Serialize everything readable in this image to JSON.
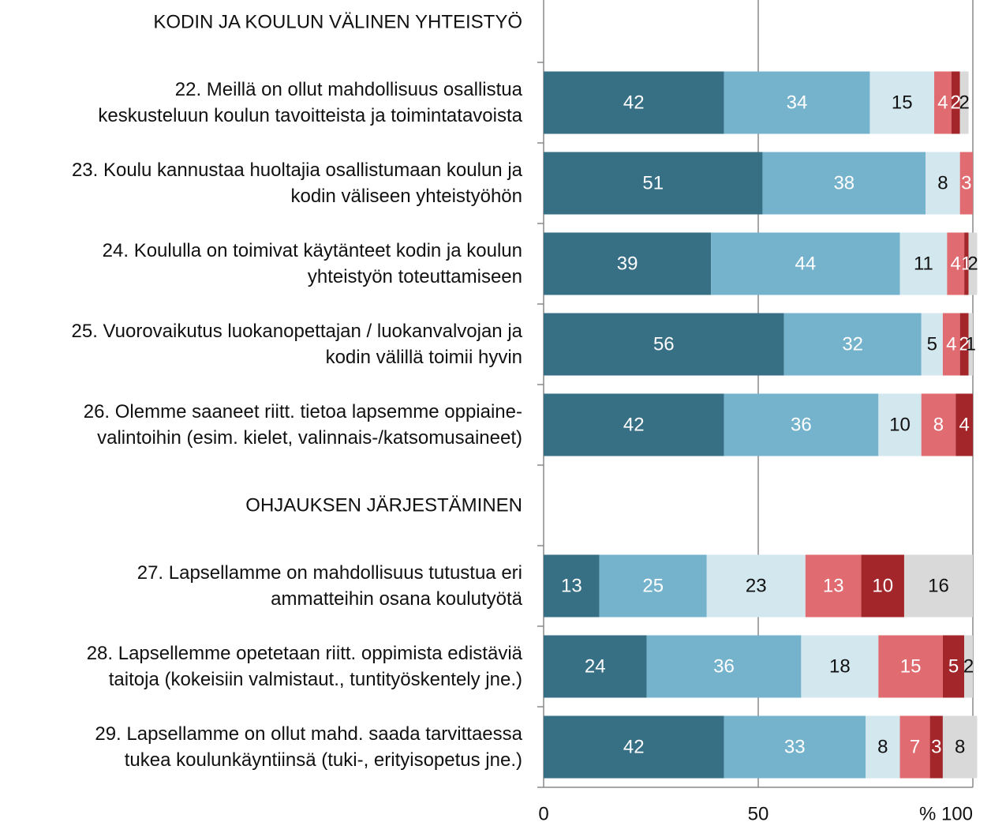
{
  "chart_data": {
    "type": "stacked-barh",
    "categories": [
      "KODIN JA KOULUN VÄLINEN YHTEISTYÖ",
      "22. Meillä on ollut mahdollisuus osallistua\nkeskusteluun koulun tavoitteista ja toimintatavoista",
      "23. Koulu kannustaa huoltajia osallistumaan koulun ja\nkodin väliseen yhteistyöhön",
      "24. Koululla on toimivat käytänteet kodin ja koulun\nyhteistyön toteuttamiseen",
      "25. Vuorovaikutus luokanopettajan / luokanvalvojan ja\nkodin välillä toimii hyvin",
      "26. Olemme saaneet riitt. tietoa lapsemme oppiaine-\nvalintoihin (esim. kielet, valinnais-/katsomusaineet)",
      "OHJAUKSEN JÄRJESTÄMINEN",
      "27. Lapsellamme on mahdollisuus tutustua eri\nammatteihin osana koulutyötä",
      "28. Lapsellemme opetetaan riitt. oppimista edistäviä\ntaitoja (kokeisiin valmistaut., tuntityöskentely jne.)",
      "29. Lapsellamme on ollut mahd. saada tarvittaessa\ntukea koulunkäyntiinsä (tuki-, erityisopetus jne.)"
    ],
    "series": [
      {
        "color": "#376f85",
        "values": [
          null,
          42,
          51,
          39,
          56,
          42,
          null,
          13,
          24,
          42
        ]
      },
      {
        "color": "#75b3cc",
        "values": [
          null,
          34,
          38,
          44,
          32,
          36,
          null,
          25,
          36,
          33
        ]
      },
      {
        "color": "#d3e7ef",
        "values": [
          null,
          15,
          8,
          11,
          5,
          10,
          null,
          23,
          18,
          8
        ]
      },
      {
        "color": "#e06b70",
        "values": [
          null,
          4,
          3,
          4,
          4,
          8,
          null,
          13,
          15,
          7
        ]
      },
      {
        "color": "#a3262b",
        "values": [
          null,
          2,
          null,
          1,
          2,
          4,
          null,
          10,
          5,
          3
        ]
      },
      {
        "color": "#d9d9d9",
        "values": [
          null,
          2,
          null,
          2,
          1,
          null,
          null,
          16,
          2,
          8
        ]
      }
    ],
    "xlim": [
      0,
      100
    ],
    "xticks": [
      0,
      50,
      {
        "value": 100,
        "label": "% 100"
      }
    ],
    "grid": true
  }
}
